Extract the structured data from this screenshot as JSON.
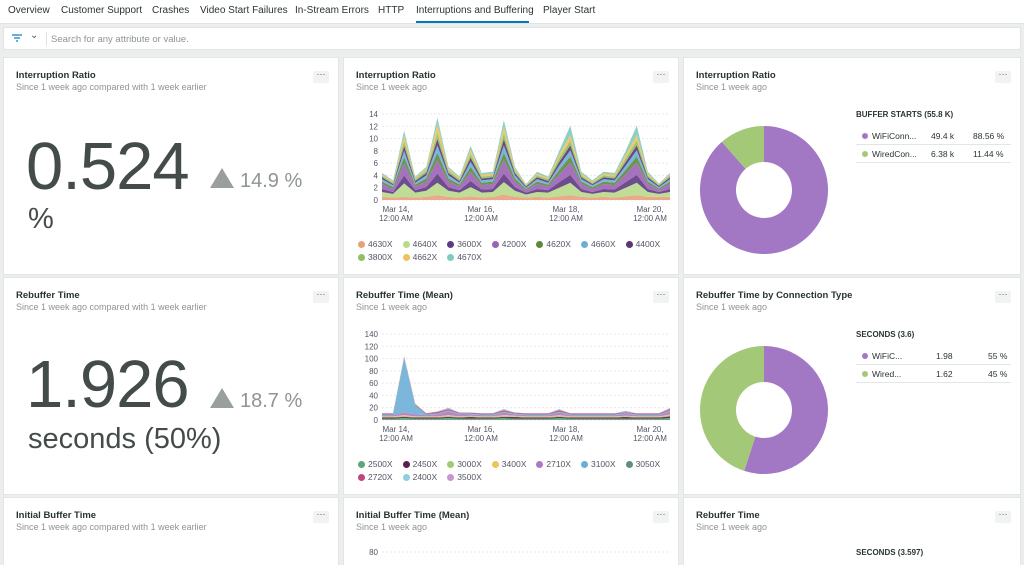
{
  "tabs": [
    {
      "label": "Overview"
    },
    {
      "label": "Customer Support"
    },
    {
      "label": "Crashes"
    },
    {
      "label": "Video Start Failures"
    },
    {
      "label": "In-Stream Errors"
    },
    {
      "label": "HTTP"
    },
    {
      "label": "Interruptions and Buffering"
    },
    {
      "label": "Player Start"
    }
  ],
  "active_tab": "Interruptions and Buffering",
  "filter": {
    "placeholder": "Search for any attribute or value."
  },
  "menu_label": "···",
  "cards": {
    "ir_billboard": {
      "title": "Interruption Ratio",
      "subtitle": "Since 1 week ago compared with 1 week earlier",
      "value": "0.524",
      "unit": "%",
      "delta": "14.9 %"
    },
    "ir_area": {
      "title": "Interruption Ratio",
      "subtitle": "Since 1 week ago"
    },
    "ir_pie": {
      "title": "Interruption Ratio",
      "subtitle": "Since 1 week ago",
      "table_title": "BUFFER STARTS (55.8 K)",
      "rows": [
        {
          "name": "WiFiConn...",
          "value": "49.4 k",
          "pct": "88.56 %"
        },
        {
          "name": "WiredCon...",
          "value": "6.38 k",
          "pct": "11.44 %"
        }
      ]
    },
    "rt_billboard": {
      "title": "Rebuffer Time",
      "subtitle": "Since 1 week ago compared with 1 week earlier",
      "value": "1.926",
      "unit": "seconds (50%)",
      "delta": "18.7 %"
    },
    "rt_area": {
      "title": "Rebuffer Time (Mean)",
      "subtitle": "Since 1 week ago"
    },
    "rt_pie": {
      "title": "Rebuffer Time by Connection Type",
      "subtitle": "Since 1 week ago",
      "table_title": "SECONDS (3.6)",
      "rows": [
        {
          "name": "WiFiC...",
          "value": "1.98",
          "pct": "55 %"
        },
        {
          "name": "Wired...",
          "value": "1.62",
          "pct": "45 %"
        }
      ]
    },
    "ibt_billboard": {
      "title": "Initial Buffer Time",
      "subtitle": "Since 1 week ago compared with 1 week earlier"
    },
    "ibt_area": {
      "title": "Initial Buffer Time (Mean)",
      "subtitle": "Since 1 week ago"
    },
    "rt2": {
      "title": "Rebuffer Time",
      "subtitle": "Since 1 week ago",
      "table_title": "SECONDS (3.597)"
    }
  },
  "colors": {
    "tab_active": "#0079bf",
    "purple": "#a277c3",
    "green": "#a3c978"
  },
  "chart_data": [
    {
      "type": "area",
      "title": "Interruption Ratio",
      "x_ticks": [
        [
          "Mar 14,",
          "12:00 AM"
        ],
        [
          "Mar 16,",
          "12:00 AM"
        ],
        [
          "Mar 18,",
          "12:00 AM"
        ],
        [
          "Mar 20,",
          "12:00 AM"
        ]
      ],
      "ylim": [
        0,
        14
      ],
      "y_ticks": [
        0,
        2,
        4,
        6,
        8,
        10,
        12,
        14
      ],
      "stacked": true,
      "series": [
        {
          "name": "4630X",
          "color": "#e8a07b",
          "values": [
            0.5,
            0.4,
            0.5,
            0.4,
            0.5,
            0.8,
            0.5,
            0.4,
            0.6,
            0.4,
            0.5,
            0.9,
            0.5,
            0.4,
            0.5,
            0.4,
            0.6,
            0.8,
            0.5,
            0.4,
            0.5,
            0.4,
            0.6,
            0.8,
            0.5,
            0.5,
            0.5
          ]
        },
        {
          "name": "4640X",
          "color": "#b9d98b",
          "values": [
            0.8,
            0.6,
            2.2,
            0.8,
            1.0,
            2.0,
            1.0,
            0.8,
            1.5,
            0.8,
            0.8,
            2.0,
            1.0,
            0.5,
            0.8,
            0.8,
            1.4,
            2.0,
            0.8,
            0.6,
            0.8,
            0.8,
            1.4,
            2.0,
            0.8,
            0.5,
            0.8
          ]
        },
        {
          "name": "3600X",
          "color": "#5e3a83",
          "values": [
            0.5,
            0.3,
            1.3,
            0.4,
            0.6,
            1.5,
            0.6,
            0.4,
            1.0,
            0.5,
            0.5,
            1.4,
            0.6,
            0.3,
            0.5,
            0.4,
            0.9,
            1.3,
            0.5,
            0.3,
            0.5,
            0.5,
            0.9,
            1.3,
            0.5,
            0.3,
            0.5
          ]
        },
        {
          "name": "4200X",
          "color": "#9c63b5",
          "values": [
            0.8,
            0.5,
            2.0,
            0.6,
            0.9,
            2.2,
            0.9,
            0.6,
            1.5,
            0.7,
            0.8,
            2.2,
            0.9,
            0.4,
            0.8,
            0.6,
            1.3,
            2.0,
            0.8,
            0.5,
            0.8,
            0.7,
            1.3,
            2.0,
            0.8,
            0.4,
            0.8
          ]
        },
        {
          "name": "4620X",
          "color": "#5c8a3c",
          "values": [
            0.4,
            0.3,
            1.0,
            0.3,
            0.5,
            1.2,
            0.5,
            0.3,
            0.8,
            0.4,
            0.4,
            1.2,
            0.5,
            0.2,
            0.4,
            0.3,
            0.7,
            1.0,
            0.4,
            0.3,
            0.4,
            0.4,
            0.7,
            1.0,
            0.4,
            0.2,
            0.4
          ]
        },
        {
          "name": "4660X",
          "color": "#6bafd6",
          "values": [
            0.4,
            0.3,
            1.0,
            0.3,
            0.5,
            1.2,
            0.5,
            0.3,
            0.8,
            0.4,
            0.4,
            1.2,
            0.5,
            0.2,
            0.4,
            0.3,
            0.7,
            1.0,
            0.4,
            0.3,
            0.4,
            0.4,
            0.7,
            1.0,
            0.4,
            0.2,
            0.4
          ]
        },
        {
          "name": "4400X",
          "color": "#5b3576",
          "values": [
            0.3,
            0.2,
            0.8,
            0.3,
            0.4,
            1.0,
            0.4,
            0.3,
            0.7,
            0.3,
            0.3,
            1.0,
            0.4,
            0.2,
            0.3,
            0.3,
            0.6,
            0.8,
            0.3,
            0.2,
            0.3,
            0.3,
            0.6,
            0.8,
            0.3,
            0.2,
            0.3
          ]
        },
        {
          "name": "3800X",
          "color": "#8fc164",
          "values": [
            0.3,
            0.2,
            0.8,
            0.3,
            0.4,
            1.0,
            0.4,
            0.3,
            0.6,
            0.3,
            0.3,
            1.0,
            0.4,
            0.2,
            0.3,
            0.3,
            0.6,
            0.8,
            0.3,
            0.2,
            0.3,
            0.3,
            0.6,
            0.8,
            0.3,
            0.2,
            0.3
          ]
        },
        {
          "name": "4662X",
          "color": "#eec25c",
          "values": [
            0.2,
            0.2,
            0.9,
            0.2,
            0.3,
            1.5,
            0.3,
            0.2,
            0.7,
            0.3,
            0.3,
            1.1,
            0.3,
            0.1,
            0.3,
            0.2,
            0.6,
            0.9,
            0.3,
            0.2,
            0.3,
            0.3,
            0.6,
            0.9,
            0.3,
            0.1,
            0.2
          ]
        },
        {
          "name": "4670X",
          "color": "#7fcbbf",
          "values": [
            0.2,
            0.2,
            0.8,
            0.2,
            0.3,
            1.0,
            0.3,
            0.2,
            0.6,
            0.3,
            0.3,
            1.0,
            0.3,
            0.1,
            0.3,
            0.2,
            0.6,
            1.5,
            0.3,
            0.2,
            0.3,
            0.3,
            0.6,
            1.5,
            0.3,
            0.1,
            0.2
          ]
        }
      ]
    },
    {
      "type": "area",
      "title": "Rebuffer Time (Mean)",
      "x_ticks": [
        [
          "Mar 14,",
          "12:00 AM"
        ],
        [
          "Mar 16,",
          "12:00 AM"
        ],
        [
          "Mar 18,",
          "12:00 AM"
        ],
        [
          "Mar 20,",
          "12:00 AM"
        ]
      ],
      "ylim": [
        0,
        140
      ],
      "y_ticks": [
        0,
        20,
        40,
        60,
        80,
        100,
        120,
        140
      ],
      "stacked": true,
      "series": [
        {
          "name": "2500X",
          "color": "#5ba67a",
          "values": [
            2,
            2,
            3,
            2,
            2,
            2,
            3,
            2,
            2,
            2,
            2,
            3,
            2,
            2,
            2,
            2,
            3,
            2,
            2,
            2,
            2,
            2,
            2,
            2,
            2,
            2,
            3
          ]
        },
        {
          "name": "2450X",
          "color": "#5b1e52",
          "values": [
            2,
            2,
            2,
            2,
            2,
            2,
            2,
            2,
            3,
            2,
            2,
            2,
            3,
            2,
            2,
            2,
            2,
            2,
            2,
            2,
            2,
            2,
            3,
            2,
            2,
            2,
            3
          ]
        },
        {
          "name": "3000X",
          "color": "#a3c978",
          "values": [
            1,
            1,
            2,
            1,
            1,
            1,
            2,
            1,
            1,
            1,
            1,
            2,
            1,
            1,
            1,
            1,
            2,
            1,
            1,
            1,
            1,
            1,
            1,
            1,
            1,
            1,
            2
          ]
        },
        {
          "name": "3400X",
          "color": "#eec25c",
          "values": [
            1,
            1,
            1,
            1,
            1,
            1,
            1,
            1,
            1,
            1,
            1,
            1,
            1,
            1,
            1,
            1,
            1,
            1,
            1,
            1,
            1,
            1,
            1,
            1,
            1,
            1,
            1
          ]
        },
        {
          "name": "2710X",
          "color": "#b276c4",
          "values": [
            2,
            2,
            4,
            3,
            2,
            3,
            6,
            3,
            2,
            2,
            2,
            4,
            2,
            2,
            2,
            2,
            4,
            2,
            2,
            2,
            2,
            2,
            3,
            2,
            2,
            2,
            5
          ]
        },
        {
          "name": "3100X",
          "color": "#6bafd6",
          "values": [
            1,
            1,
            88,
            14,
            1,
            1,
            1,
            1,
            1,
            1,
            1,
            1,
            1,
            1,
            1,
            1,
            1,
            1,
            1,
            1,
            1,
            1,
            1,
            1,
            1,
            1,
            1
          ]
        },
        {
          "name": "3050X",
          "color": "#5e8f7c",
          "values": [
            1,
            1,
            1,
            1,
            1,
            1,
            1,
            1,
            1,
            1,
            1,
            1,
            1,
            1,
            1,
            1,
            1,
            1,
            1,
            1,
            1,
            1,
            1,
            1,
            1,
            1,
            1
          ]
        },
        {
          "name": "2720X",
          "color": "#c0457a",
          "values": [
            1,
            1,
            1,
            1,
            1,
            2,
            2,
            1,
            1,
            1,
            1,
            2,
            1,
            1,
            1,
            1,
            2,
            1,
            1,
            1,
            1,
            1,
            1,
            1,
            1,
            1,
            2
          ]
        },
        {
          "name": "2400X",
          "color": "#8ecfe0",
          "values": [
            0,
            0,
            1,
            1,
            0,
            0,
            1,
            0,
            0,
            0,
            0,
            1,
            0,
            0,
            0,
            0,
            1,
            0,
            0,
            0,
            0,
            0,
            1,
            0,
            0,
            0,
            1
          ]
        },
        {
          "name": "3500X",
          "color": "#c796cf",
          "values": [
            0,
            0,
            1,
            1,
            0,
            1,
            1,
            0,
            0,
            0,
            0,
            1,
            0,
            0,
            0,
            0,
            1,
            0,
            0,
            0,
            0,
            0,
            1,
            0,
            0,
            0,
            1
          ]
        }
      ]
    },
    {
      "type": "pie",
      "title": "Interruption Ratio",
      "labels": [
        "WiFiConn...",
        "WiredCon..."
      ],
      "values": [
        88.56,
        11.44
      ],
      "colors": [
        "#a277c3",
        "#a3c978"
      ]
    },
    {
      "type": "pie",
      "title": "Rebuffer Time by Connection Type",
      "labels": [
        "WiFiC...",
        "Wired..."
      ],
      "values": [
        55,
        45
      ],
      "colors": [
        "#a277c3",
        "#a3c978"
      ]
    },
    {
      "type": "area",
      "title": "Initial Buffer Time (Mean)",
      "y_ticks": [
        80
      ]
    }
  ]
}
